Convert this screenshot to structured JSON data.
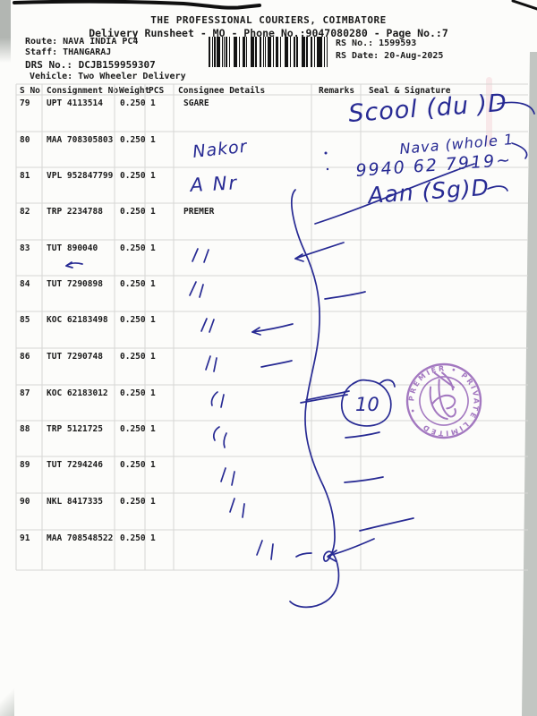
{
  "header": {
    "title": "THE PROFESSIONAL COURIERS, COIMBATORE",
    "subtitle": "Delivery Runsheet - MO - Phone No.:9047080280 - Page No.:7",
    "route": "Route: NAVA INDIA PC4",
    "staff": "Staff: THANGARAJ",
    "drs_no": "DRS No.: DCJB159959307",
    "vehicle": "Vehicle: Two Wheeler Delivery",
    "rs_no": "RS No.: 1599593",
    "rs_date": "RS Date: 20-Aug-2025"
  },
  "table": {
    "columns": [
      "S No",
      "Consignment No",
      "Weight",
      "PCS",
      "Consignee Details",
      "Remarks",
      "Seal & Signature"
    ],
    "rows": [
      {
        "s_no": "79",
        "consignment": "UPT 4113514",
        "weight": "0.250",
        "pcs": "1",
        "consignee": "SGARE"
      },
      {
        "s_no": "80",
        "consignment": "MAA 708305803",
        "weight": "0.250",
        "pcs": "1",
        "consignee": ""
      },
      {
        "s_no": "81",
        "consignment": "VPL 952847799",
        "weight": "0.250",
        "pcs": "1",
        "consignee": ""
      },
      {
        "s_no": "82",
        "consignment": "TRP 2234788",
        "weight": "0.250",
        "pcs": "1",
        "consignee": "PREMER"
      },
      {
        "s_no": "83",
        "consignment": "TUT 890040",
        "weight": "0.250",
        "pcs": "1",
        "consignee": ""
      },
      {
        "s_no": "84",
        "consignment": "TUT 7290898",
        "weight": "0.250",
        "pcs": "1",
        "consignee": ""
      },
      {
        "s_no": "85",
        "consignment": "KOC 62183498",
        "weight": "0.250",
        "pcs": "1",
        "consignee": ""
      },
      {
        "s_no": "86",
        "consignment": "TUT 7290748",
        "weight": "0.250",
        "pcs": "1",
        "consignee": ""
      },
      {
        "s_no": "87",
        "consignment": "KOC 62183012",
        "weight": "0.250",
        "pcs": "1",
        "consignee": ""
      },
      {
        "s_no": "88",
        "consignment": "TRP 5121725",
        "weight": "0.250",
        "pcs": "1",
        "consignee": ""
      },
      {
        "s_no": "89",
        "consignment": "TUT 7294246",
        "weight": "0.250",
        "pcs": "1",
        "consignee": ""
      },
      {
        "s_no": "90",
        "consignment": "NKL 8417335",
        "weight": "0.250",
        "pcs": "1",
        "consignee": ""
      },
      {
        "s_no": "91",
        "consignment": "MAA 708548522",
        "weight": "0.250",
        "pcs": "1",
        "consignee": ""
      }
    ]
  },
  "handwriting": {
    "signature_1": "Scool (du )D",
    "receiver_note": "Nava (whole 1",
    "phone_number": "9940 62 7919~",
    "signature_2": "Aan (Sg)D",
    "consignee_note_80": "Nakor",
    "consignee_note_81": "A Nr",
    "circled_count": "10"
  },
  "stamp": {
    "ring_text": "• PREMIER • PRIVATE LIMITED "
  },
  "colors": {
    "pen_ink": "#272a93",
    "stamp_purple": "#8e58b2",
    "print_black": "#1b1b1b"
  }
}
